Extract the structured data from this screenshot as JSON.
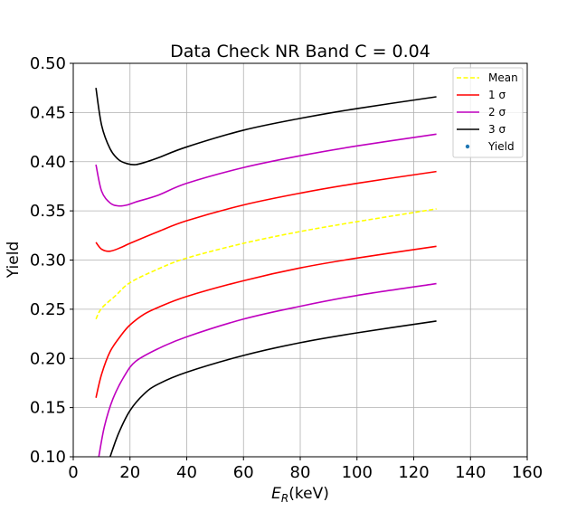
{
  "chart_data": {
    "type": "line",
    "title": "Data Check NR Band C = 0.04",
    "xlabel_main": "E",
    "xlabel_sub": "R",
    "xlabel_unit": "(keV)",
    "ylabel": "Yield",
    "xlim": [
      0,
      160
    ],
    "ylim": [
      0.1,
      0.5
    ],
    "xticks": [
      0,
      20,
      40,
      60,
      80,
      100,
      120,
      140,
      160
    ],
    "yticks": [
      "0.10",
      "0.15",
      "0.20",
      "0.25",
      "0.30",
      "0.35",
      "0.40",
      "0.45",
      "0.50"
    ],
    "grid": true,
    "legend_position": "top-right",
    "legend": [
      {
        "label": "Mean",
        "color": "#ffff00",
        "style": "dashed"
      },
      {
        "label": "1 σ",
        "color": "#ff0000",
        "style": "solid"
      },
      {
        "label": "2 σ",
        "color": "#bf00bf",
        "style": "solid"
      },
      {
        "label": "3 σ",
        "color": "#000000",
        "style": "solid"
      },
      {
        "label": "Yield",
        "color": "#1f77b4",
        "style": "marker"
      }
    ],
    "series": [
      {
        "key": "mean",
        "color": "#ffff00",
        "dashed": true,
        "x": [
          8,
          10,
          15,
          20,
          30,
          40,
          60,
          80,
          100,
          128
        ],
        "values": [
          0.24,
          0.251,
          0.264,
          0.277,
          0.291,
          0.302,
          0.317,
          0.329,
          0.339,
          0.352
        ]
      },
      {
        "key": "upper1",
        "color": "#ff0000",
        "x": [
          8,
          10,
          13,
          17,
          20,
          30,
          40,
          60,
          80,
          100,
          128
        ],
        "values": [
          0.318,
          0.311,
          0.309,
          0.313,
          0.317,
          0.329,
          0.34,
          0.356,
          0.368,
          0.378,
          0.39
        ]
      },
      {
        "key": "lower1",
        "color": "#ff0000",
        "x": [
          8,
          10,
          13,
          17,
          20,
          25,
          30,
          40,
          60,
          80,
          100,
          128
        ],
        "values": [
          0.16,
          0.184,
          0.207,
          0.224,
          0.234,
          0.245,
          0.252,
          0.263,
          0.279,
          0.292,
          0.302,
          0.314
        ]
      },
      {
        "key": "upper2",
        "color": "#bf00bf",
        "x": [
          8,
          10,
          13,
          16,
          19,
          22,
          30,
          40,
          60,
          80,
          100,
          128
        ],
        "values": [
          0.397,
          0.37,
          0.358,
          0.355,
          0.356,
          0.359,
          0.366,
          0.378,
          0.394,
          0.406,
          0.416,
          0.428
        ]
      },
      {
        "key": "lower2",
        "color": "#bf00bf",
        "x": [
          9,
          11,
          14,
          18,
          22,
          30,
          40,
          60,
          80,
          100,
          128
        ],
        "values": [
          0.1,
          0.131,
          0.159,
          0.182,
          0.197,
          0.21,
          0.222,
          0.24,
          0.253,
          0.264,
          0.276
        ]
      },
      {
        "key": "upper3",
        "color": "#000000",
        "x": [
          8,
          10,
          13,
          16,
          19,
          22,
          26,
          30,
          40,
          60,
          80,
          100,
          128
        ],
        "values": [
          0.475,
          0.437,
          0.413,
          0.402,
          0.398,
          0.397,
          0.4,
          0.404,
          0.415,
          0.432,
          0.444,
          0.454,
          0.466
        ]
      },
      {
        "key": "lower3",
        "color": "#000000",
        "x": [
          13,
          16,
          20,
          25,
          30,
          40,
          60,
          80,
          100,
          128
        ],
        "values": [
          0.1,
          0.124,
          0.147,
          0.164,
          0.174,
          0.186,
          0.203,
          0.216,
          0.226,
          0.238
        ]
      }
    ]
  }
}
